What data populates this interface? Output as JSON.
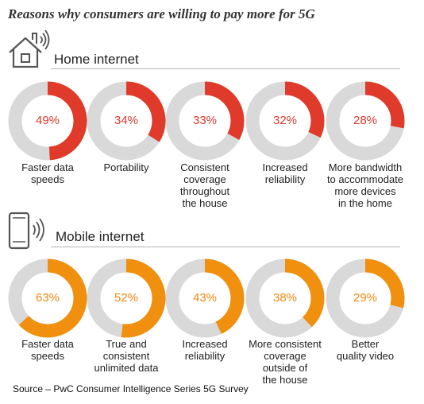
{
  "title": "Reasons why consumers are willing to pay more for 5G",
  "source": "Source – PwC Consumer Intelligence Series 5G Survey",
  "colors": {
    "home": "#e03a2a",
    "mobile": "#f0900e",
    "track": "#d9d9d9",
    "home_text": "#d8392b",
    "mobile_text": "#ee8a12"
  },
  "chart_data": [
    {
      "type": "pie",
      "subtitle": "Home internet",
      "icon": "house-wifi-icon",
      "categories": [
        "Faster data speeds",
        "Portability",
        "Consistent coverage throughout the house",
        "Increased reliability",
        "More bandwidth to accommodate more devices in the home"
      ],
      "values": [
        49,
        34,
        33,
        32,
        28
      ],
      "labels": [
        "49%",
        "34%",
        "33%",
        "32%",
        "28%"
      ],
      "category_lines": [
        [
          "Faster data",
          "speeds"
        ],
        [
          "Portability"
        ],
        [
          "Consistent",
          "coverage",
          "throughout",
          "the house"
        ],
        [
          "Increased",
          "reliability"
        ],
        [
          "More bandwidth",
          "to accommodate",
          "more devices",
          "in the home"
        ]
      ]
    },
    {
      "type": "pie",
      "subtitle": "Mobile internet",
      "icon": "smartphone-wifi-icon",
      "categories": [
        "Faster data speeds",
        "True and consistent unlimited data",
        "Increased reliability",
        "More consistent coverage outside of the house",
        "Better quality video"
      ],
      "values": [
        63,
        52,
        43,
        38,
        29
      ],
      "labels": [
        "63%",
        "52%",
        "43%",
        "38%",
        "29%"
      ],
      "category_lines": [
        [
          "Faster data",
          "speeds"
        ],
        [
          "True and",
          "consistent",
          "unlimited data"
        ],
        [
          "Increased",
          "reliability"
        ],
        [
          "More consistent",
          "coverage",
          "outside of",
          "the house"
        ],
        [
          "Better",
          "quality video"
        ]
      ]
    }
  ]
}
